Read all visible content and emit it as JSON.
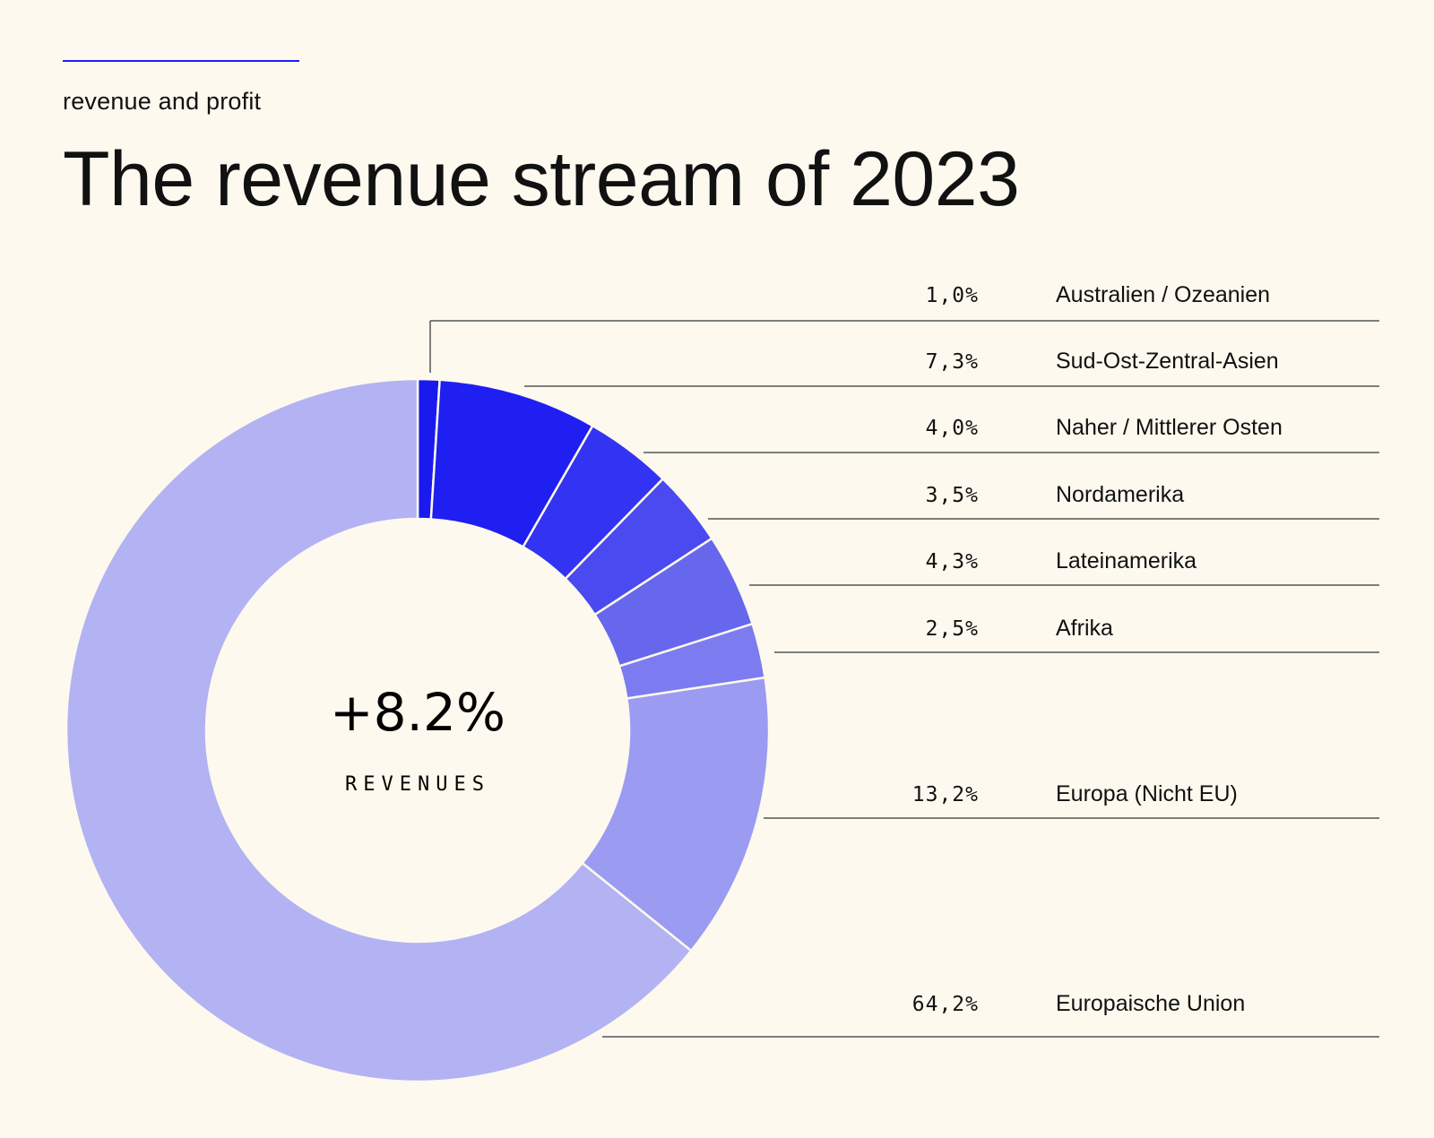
{
  "header": {
    "eyebrow": "revenue and  profit",
    "title": "The revenue stream of 2023"
  },
  "colors": {
    "background": "#fdf9ee",
    "accent": "#1a1aff",
    "rule": "#555555",
    "text": "#111111"
  },
  "chart_data": {
    "type": "pie",
    "variant": "donut",
    "title": "The revenue stream of 2023",
    "center_value": "+8.2%",
    "center_label": "REVENUES",
    "start": "12 o'clock",
    "direction": "clockwise",
    "slices": [
      {
        "label": "Australien / Ozeanien",
        "value": 1.0,
        "display": "1,0%",
        "color": "#1a1aee"
      },
      {
        "label": "Sud-Ost-Zentral-Asien",
        "value": 7.3,
        "display": "7,3%",
        "color": "#1f1ff2"
      },
      {
        "label": "Naher / Mittlerer Osten",
        "value": 4.0,
        "display": "4,0%",
        "color": "#3333f3"
      },
      {
        "label": "Nordamerika",
        "value": 3.5,
        "display": "3,5%",
        "color": "#4a4af0"
      },
      {
        "label": "Lateinamerika",
        "value": 4.3,
        "display": "4,3%",
        "color": "#6767ee"
      },
      {
        "label": "Afrika",
        "value": 2.5,
        "display": "2,5%",
        "color": "#7c7cf0"
      },
      {
        "label": "Europa (Nicht EU)",
        "value": 13.2,
        "display": "13,2%",
        "color": "#9b9bf2"
      },
      {
        "label": "Europaische Union",
        "value": 64.2,
        "display": "64,2%",
        "color": "#b3b2f3"
      }
    ]
  }
}
